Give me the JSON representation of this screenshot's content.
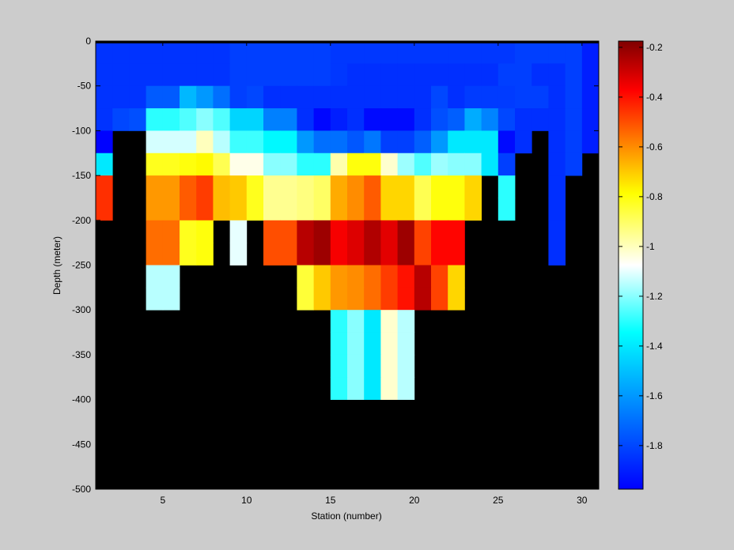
{
  "chart_data": {
    "type": "heatmap",
    "title": "",
    "xlabel": "Station (number)",
    "ylabel": "Depth (meter)",
    "xlim": [
      1,
      31
    ],
    "ylim": [
      -500,
      0
    ],
    "x_ticks": [
      5,
      10,
      15,
      20,
      25,
      30
    ],
    "y_ticks": [
      0,
      -50,
      -100,
      -150,
      -200,
      -250,
      -300,
      -350,
      -400,
      -450,
      -500
    ],
    "cell_height_m": 25,
    "x_centers": [
      1.5,
      2.5,
      3.5,
      4.5,
      5.5,
      6.5,
      7.5,
      8.5,
      9.5,
      10.5,
      11.5,
      12.5,
      13.5,
      14.5,
      15.5,
      16.5,
      17.5,
      18.5,
      19.5,
      20.5,
      21.5,
      22.5,
      23.5,
      24.5,
      25.5,
      26.5,
      27.5,
      28.5,
      29.5,
      30.5
    ],
    "depth_centers": [
      -12.5,
      -37.5,
      -62.5,
      -87.5,
      -112.5,
      -137.5,
      -162.5,
      -187.5,
      -212.5,
      -237.5,
      -262.5,
      -287.5,
      -312.5,
      -337.5,
      -362.5,
      -387.5
    ],
    "missing_color": "#000000",
    "top_band": {
      "depth": [
        -2.5,
        0
      ],
      "color": "#000000"
    },
    "colorbar": {
      "colormap": "jet",
      "range": [
        -1.975,
        -0.175
      ],
      "ticks": [
        -0.2,
        -0.4,
        -0.6,
        -0.8,
        -1,
        -1.2,
        -1.4,
        -1.6,
        -1.8
      ],
      "tick_labels": [
        "-0.2",
        "-0.4",
        "-0.6",
        "-0.8",
        "-1",
        "-1.2",
        "-1.4",
        "-1.6",
        "-1.8"
      ]
    },
    "values": [
      [
        -1.85,
        -1.85,
        -1.85,
        -1.85,
        -1.85,
        -1.85,
        -1.85,
        -1.85,
        -1.82,
        -1.82,
        -1.82,
        -1.82,
        -1.82,
        -1.82,
        -1.84,
        -1.84,
        -1.84,
        -1.84,
        -1.84,
        -1.84,
        -1.84,
        -1.84,
        -1.84,
        -1.84,
        -1.84,
        -1.82,
        -1.82,
        -1.82,
        -1.82,
        -1.9
      ],
      [
        -1.85,
        -1.85,
        -1.85,
        -1.85,
        -1.85,
        -1.85,
        -1.85,
        -1.85,
        -1.82,
        -1.82,
        -1.82,
        -1.82,
        -1.82,
        -1.82,
        -1.84,
        -1.86,
        -1.86,
        -1.86,
        -1.86,
        -1.86,
        -1.86,
        -1.86,
        -1.86,
        -1.86,
        -1.82,
        -1.82,
        -1.86,
        -1.86,
        -1.82,
        -1.9
      ],
      [
        -1.85,
        -1.85,
        -1.85,
        -1.75,
        -1.75,
        -1.52,
        -1.6,
        -1.7,
        -1.82,
        -1.8,
        -1.86,
        -1.86,
        -1.86,
        -1.86,
        -1.86,
        -1.86,
        -1.86,
        -1.86,
        -1.86,
        -1.86,
        -1.8,
        -1.86,
        -1.83,
        -1.83,
        -1.83,
        -1.82,
        -1.82,
        -1.86,
        -1.82,
        -1.9
      ],
      [
        -1.85,
        -1.8,
        -1.78,
        -1.3,
        -1.3,
        -1.26,
        -1.2,
        -1.26,
        -1.45,
        -1.45,
        -1.66,
        -1.66,
        -1.86,
        -1.96,
        -1.9,
        -1.86,
        -1.95,
        -1.95,
        -1.95,
        -1.86,
        -1.78,
        -1.74,
        -1.55,
        -1.65,
        -1.8,
        -1.86,
        -1.86,
        -1.86,
        -1.82,
        -1.9
      ],
      [
        -1.97,
        null,
        null,
        -1.12,
        -1.12,
        -1.12,
        -1.0,
        -1.15,
        -1.28,
        -1.28,
        -1.36,
        -1.36,
        -1.6,
        -1.7,
        -1.7,
        -1.76,
        -1.68,
        -1.82,
        -1.82,
        -1.74,
        -1.6,
        -1.4,
        -1.4,
        -1.4,
        -1.95,
        -1.86,
        null,
        -1.86,
        -1.82,
        -1.9
      ],
      [
        -1.4,
        null,
        null,
        -0.82,
        -0.82,
        -0.8,
        -0.78,
        -0.88,
        -1.05,
        -1.05,
        -1.2,
        -1.2,
        -1.3,
        -1.3,
        -0.98,
        -0.8,
        -0.8,
        -1.02,
        -1.18,
        -1.26,
        -1.18,
        -1.2,
        -1.2,
        -1.4,
        -1.82,
        null,
        null,
        -1.86,
        -1.82,
        null
      ],
      [
        -0.45,
        null,
        null,
        -0.62,
        -0.62,
        -0.52,
        -0.47,
        -0.68,
        -0.7,
        -0.82,
        -0.95,
        -0.95,
        -0.93,
        -0.9,
        -0.65,
        -0.6,
        -0.52,
        -0.72,
        -0.72,
        -0.88,
        -0.8,
        -0.8,
        -0.72,
        null,
        -1.3,
        null,
        null,
        -1.86,
        null,
        null
      ],
      [
        -0.45,
        null,
        null,
        -0.62,
        -0.62,
        -0.52,
        -0.47,
        -0.68,
        -0.7,
        -0.82,
        -0.95,
        -0.95,
        -0.93,
        -0.9,
        -0.65,
        -0.6,
        -0.52,
        -0.72,
        -0.72,
        -0.88,
        -0.8,
        -0.8,
        -0.72,
        null,
        -1.3,
        null,
        null,
        -1.86,
        null,
        null
      ],
      [
        null,
        null,
        null,
        -0.55,
        -0.55,
        -0.82,
        -0.8,
        null,
        -1.1,
        null,
        -0.5,
        -0.5,
        -0.26,
        -0.22,
        -0.36,
        -0.32,
        -0.25,
        -0.33,
        -0.22,
        -0.48,
        -0.38,
        -0.38,
        null,
        null,
        null,
        null,
        null,
        -1.86,
        null,
        null
      ],
      [
        null,
        null,
        null,
        -0.55,
        -0.55,
        -0.82,
        -0.8,
        null,
        -1.1,
        null,
        -0.5,
        -0.5,
        -0.26,
        -0.22,
        -0.36,
        -0.32,
        -0.25,
        -0.33,
        -0.22,
        -0.48,
        -0.38,
        -0.38,
        null,
        null,
        null,
        null,
        null,
        -1.86,
        null,
        null
      ],
      [
        null,
        null,
        null,
        -1.15,
        -1.15,
        null,
        null,
        null,
        null,
        null,
        null,
        null,
        -0.85,
        -0.7,
        -0.62,
        -0.6,
        -0.55,
        -0.47,
        -0.4,
        -0.26,
        -0.48,
        -0.72,
        null,
        null,
        null,
        null,
        null,
        null,
        null,
        null
      ],
      [
        null,
        null,
        null,
        -1.15,
        -1.15,
        null,
        null,
        null,
        null,
        null,
        null,
        null,
        -0.85,
        -0.7,
        -0.62,
        -0.6,
        -0.55,
        -0.47,
        -0.4,
        -0.26,
        -0.48,
        -0.72,
        null,
        null,
        null,
        null,
        null,
        null,
        null,
        null
      ],
      [
        null,
        null,
        null,
        null,
        null,
        null,
        null,
        null,
        null,
        null,
        null,
        null,
        null,
        null,
        -1.3,
        -1.2,
        -1.4,
        -1.02,
        -1.15,
        null,
        null,
        null,
        null,
        null,
        null,
        null,
        null,
        null,
        null,
        null
      ],
      [
        null,
        null,
        null,
        null,
        null,
        null,
        null,
        null,
        null,
        null,
        null,
        null,
        null,
        null,
        -1.3,
        -1.2,
        -1.4,
        -1.02,
        -1.15,
        null,
        null,
        null,
        null,
        null,
        null,
        null,
        null,
        null,
        null,
        null
      ],
      [
        null,
        null,
        null,
        null,
        null,
        null,
        null,
        null,
        null,
        null,
        null,
        null,
        null,
        null,
        -1.3,
        -1.2,
        -1.4,
        -1.02,
        -1.15,
        null,
        null,
        null,
        null,
        null,
        null,
        null,
        null,
        null,
        null,
        null
      ],
      [
        null,
        null,
        null,
        null,
        null,
        null,
        null,
        null,
        null,
        null,
        null,
        null,
        null,
        null,
        -1.3,
        -1.2,
        -1.4,
        -1.02,
        -1.15,
        null,
        null,
        null,
        null,
        null,
        null,
        null,
        null,
        null,
        null,
        null
      ]
    ]
  }
}
